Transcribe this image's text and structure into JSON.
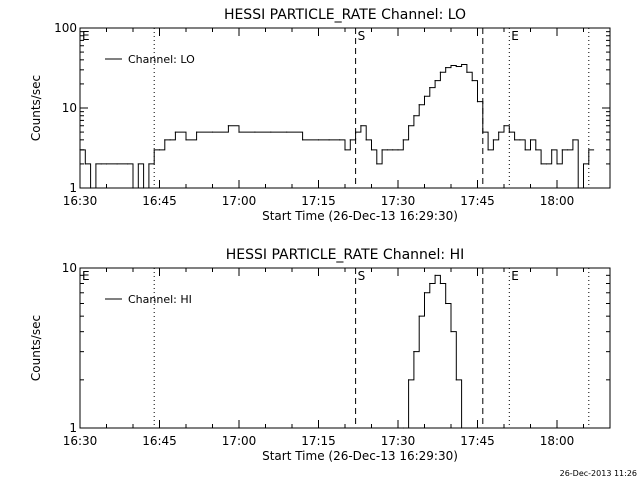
{
  "timestamp": "26-Dec-2013 11:26",
  "chart_data": [
    {
      "type": "line",
      "title": "HESSI PARTICLE_RATE Channel: LO",
      "xlabel": "Start Time (26-Dec-13 16:29:30)",
      "ylabel": "Counts/sec",
      "legend": "Channel: LO",
      "legend_position": "top-left",
      "y_scale": "log",
      "ylim": [
        1,
        100
      ],
      "y_ticks": [
        {
          "value": 1,
          "label": "1"
        },
        {
          "value": 10,
          "label": "10"
        },
        {
          "value": 100,
          "label": "100"
        }
      ],
      "xlim": [
        "16:30",
        "18:10"
      ],
      "x_ticks": [
        "16:30",
        "16:45",
        "17:00",
        "17:15",
        "17:30",
        "17:45",
        "18:00"
      ],
      "vlines": [
        {
          "time": "16:44",
          "style": "dotted",
          "label": ""
        },
        {
          "time": "17:22",
          "style": "dashed",
          "label": "S"
        },
        {
          "time": "17:46",
          "style": "dashed",
          "label": ""
        },
        {
          "time": "17:51",
          "style": "dotted",
          "label": "E"
        },
        {
          "time": "18:06",
          "style": "dotted",
          "label": ""
        }
      ],
      "edge_labels": [
        {
          "label": "E",
          "position": "top-left"
        }
      ],
      "series": [
        {
          "name": "Channel: LO",
          "x": [
            "16:30",
            "16:31",
            "16:32",
            "16:33",
            "16:34",
            "16:35",
            "16:37",
            "16:39",
            "16:40",
            "16:41",
            "16:42",
            "16:43",
            "16:44",
            "16:45",
            "16:46",
            "16:47",
            "16:48",
            "16:50",
            "16:52",
            "16:55",
            "16:58",
            "17:00",
            "17:03",
            "17:06",
            "17:09",
            "17:12",
            "17:15",
            "17:17",
            "17:19",
            "17:20",
            "17:21",
            "17:22",
            "17:23",
            "17:24",
            "17:25",
            "17:26",
            "17:27",
            "17:28",
            "17:29",
            "17:30",
            "17:31",
            "17:32",
            "17:33",
            "17:34",
            "17:35",
            "17:36",
            "17:37",
            "17:38",
            "17:39",
            "17:40",
            "17:41",
            "17:42",
            "17:43",
            "17:44",
            "17:45",
            "17:46",
            "17:47",
            "17:48",
            "17:49",
            "17:50",
            "17:51",
            "17:52",
            "17:53",
            "17:54",
            "17:55",
            "17:56",
            "17:57",
            "17:58",
            "17:59",
            "18:00",
            "18:01",
            "18:02",
            "18:03",
            "18:04",
            "18:05",
            "18:06"
          ],
          "y": [
            3,
            2,
            1,
            2,
            2,
            2,
            2,
            2,
            1,
            2,
            1,
            2,
            3,
            3,
            4,
            4,
            5,
            4,
            5,
            5,
            6,
            5,
            5,
            5,
            5,
            4,
            4,
            4,
            4,
            3,
            4,
            5,
            6,
            4,
            3,
            2,
            3,
            3,
            3,
            3,
            4,
            6,
            8,
            11,
            14,
            18,
            22,
            28,
            32,
            34,
            33,
            35,
            28,
            22,
            12,
            5,
            3,
            4,
            5,
            6,
            5,
            4,
            4,
            3,
            4,
            3,
            2,
            2,
            3,
            2,
            3,
            3,
            4,
            1,
            2,
            3
          ]
        }
      ]
    },
    {
      "type": "line",
      "title": "HESSI PARTICLE_RATE Channel: HI",
      "xlabel": "Start Time (26-Dec-13 16:29:30)",
      "ylabel": "Counts/sec",
      "legend": "Channel: HI",
      "legend_position": "top-left",
      "y_scale": "log",
      "ylim": [
        1,
        10
      ],
      "y_ticks": [
        {
          "value": 1,
          "label": "1"
        },
        {
          "value": 10,
          "label": "10"
        }
      ],
      "xlim": [
        "16:30",
        "18:10"
      ],
      "x_ticks": [
        "16:30",
        "16:45",
        "17:00",
        "17:15",
        "17:30",
        "17:45",
        "18:00"
      ],
      "vlines": [
        {
          "time": "16:44",
          "style": "dotted",
          "label": ""
        },
        {
          "time": "17:22",
          "style": "dashed",
          "label": "S"
        },
        {
          "time": "17:46",
          "style": "dashed",
          "label": ""
        },
        {
          "time": "17:51",
          "style": "dotted",
          "label": "E"
        },
        {
          "time": "18:06",
          "style": "dotted",
          "label": ""
        }
      ],
      "edge_labels": [
        {
          "label": "E",
          "position": "top-left"
        }
      ],
      "series": [
        {
          "name": "Channel: HI",
          "x": [
            "17:31",
            "17:32",
            "17:33",
            "17:34",
            "17:35",
            "17:36",
            "17:37",
            "17:38",
            "17:39",
            "17:40",
            "17:41",
            "17:42"
          ],
          "y": [
            1,
            2,
            3,
            5,
            7,
            8,
            9,
            8,
            6,
            4,
            2,
            1
          ]
        }
      ]
    }
  ]
}
